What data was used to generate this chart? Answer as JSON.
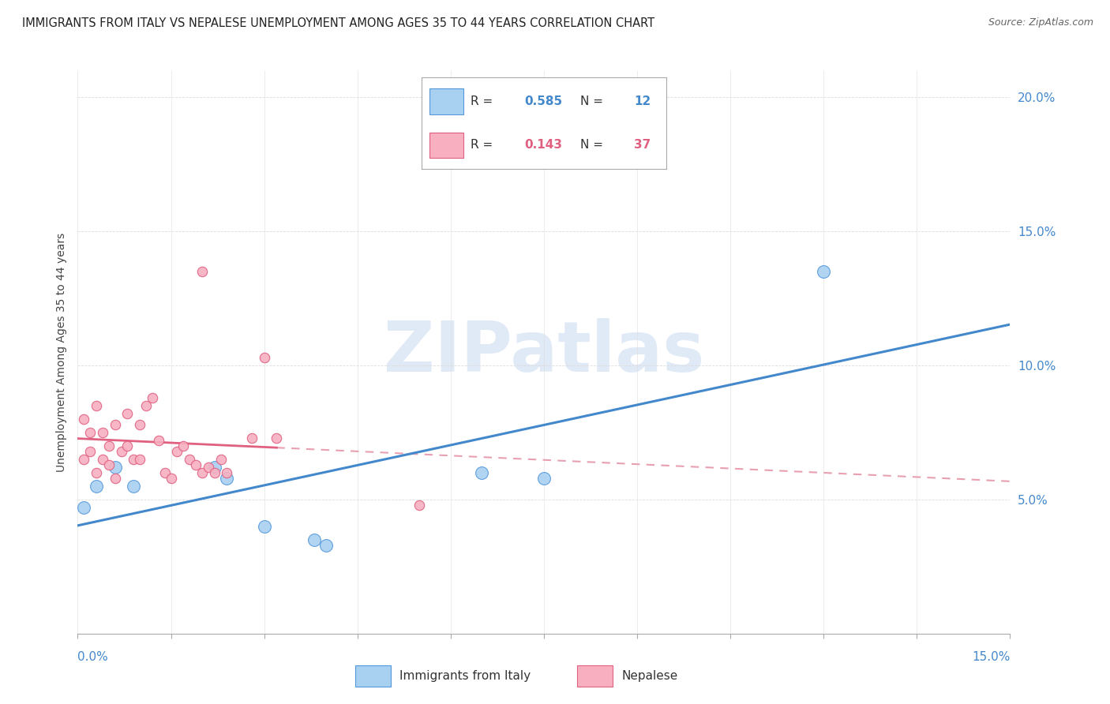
{
  "title": "IMMIGRANTS FROM ITALY VS NEPALESE UNEMPLOYMENT AMONG AGES 35 TO 44 YEARS CORRELATION CHART",
  "source": "Source: ZipAtlas.com",
  "ylabel": "Unemployment Among Ages 35 to 44 years",
  "legend_label1": "Immigrants from Italy",
  "legend_label2": "Nepalese",
  "R1": "0.585",
  "N1": "12",
  "R2": "0.143",
  "N2": "37",
  "xlim": [
    0.0,
    0.15
  ],
  "ylim": [
    0.0,
    0.21
  ],
  "ytick_vals": [
    0.0,
    0.05,
    0.1,
    0.15,
    0.2
  ],
  "ytick_labels": [
    "",
    "5.0%",
    "10.0%",
    "15.0%",
    "20.0%"
  ],
  "color_blue_fill": "#a8d0f0",
  "color_blue_edge": "#5599dd",
  "color_pink_fill": "#f8b0c0",
  "color_pink_edge": "#e06080",
  "line_blue": "#4488cc",
  "line_pink_solid": "#e06080",
  "line_pink_dash": "#e8a0b0",
  "grid_color": "#dddddd",
  "background": "#ffffff",
  "watermark_text": "ZIPatlas",
  "watermark_color": "#c8d8f0",
  "italy_x": [
    0.001,
    0.003,
    0.006,
    0.009,
    0.022,
    0.024,
    0.03,
    0.038,
    0.04,
    0.065,
    0.075,
    0.12
  ],
  "italy_y": [
    0.047,
    0.055,
    0.062,
    0.055,
    0.062,
    0.058,
    0.04,
    0.035,
    0.033,
    0.06,
    0.058,
    0.135
  ],
  "nepal_x": [
    0.001,
    0.001,
    0.002,
    0.002,
    0.003,
    0.003,
    0.004,
    0.004,
    0.005,
    0.005,
    0.006,
    0.006,
    0.007,
    0.008,
    0.008,
    0.009,
    0.01,
    0.01,
    0.011,
    0.012,
    0.013,
    0.014,
    0.015,
    0.016,
    0.017,
    0.018,
    0.019,
    0.02,
    0.021,
    0.022,
    0.023,
    0.024,
    0.028,
    0.02,
    0.055,
    0.032,
    0.03
  ],
  "nepal_y": [
    0.065,
    0.08,
    0.068,
    0.075,
    0.06,
    0.085,
    0.065,
    0.075,
    0.07,
    0.063,
    0.058,
    0.078,
    0.068,
    0.082,
    0.07,
    0.065,
    0.078,
    0.065,
    0.085,
    0.088,
    0.072,
    0.06,
    0.058,
    0.068,
    0.07,
    0.065,
    0.063,
    0.06,
    0.062,
    0.06,
    0.065,
    0.06,
    0.073,
    0.135,
    0.048,
    0.073,
    0.103
  ]
}
